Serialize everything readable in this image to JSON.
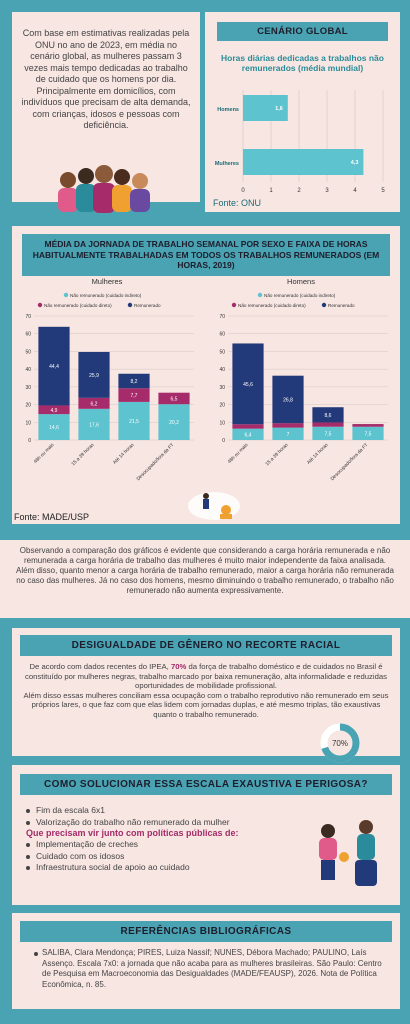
{
  "intro": {
    "text": "Com base em estimativas realizadas pela ONU no ano de 2023, em média no cenário global, as mulheres passam 3 vezes mais tempo dedicadas ao trabalho de cuidado que os homens por dia. Principalmente em domicílios, com indivíduos que precisam de alta demanda, com crianças, idosos e pessoas com deficiência."
  },
  "cenario": {
    "heading": "CENÁRIO GLOBAL",
    "source": "Fonte:  ONU"
  },
  "media": {
    "heading": "MÉDIA DA JORNADA DE TRABALHO SEMANAL POR SEXO E FAIXA DE HORAS HABITUALMENTE TRABALHADAS EM TODOS OS TRABALHOS REMUNERADOS (EM HORAS, 2019)",
    "source": "Fonte:  MADE/USP"
  },
  "colors": {
    "teal": "#4aa3b3",
    "cyan_bar": "#5cc3cf",
    "magenta": "#a62b6a",
    "navy": "#233a7a",
    "pink_bg": "#f7e6e2"
  },
  "chart_data": [
    {
      "type": "bar",
      "orientation": "horizontal",
      "title": "Horas diárias dedicadas a trabalhos não remunerados (média mundial)",
      "categories": [
        "Homens",
        "Mulheres"
      ],
      "values": [
        1.6,
        4.3
      ],
      "xlim": [
        0,
        5
      ],
      "xticks": [
        0,
        1,
        2,
        3,
        4,
        5
      ],
      "value_labels": [
        "1,6",
        "4,3"
      ]
    },
    {
      "type": "bar",
      "stacked": true,
      "title": "Mulheres",
      "categories": [
        "48h ou mais",
        "15 a 39 horas",
        "Até 14 horas",
        "Desocupado/fora da FT"
      ],
      "ylim": [
        0,
        70
      ],
      "yticks": [
        0,
        10,
        20,
        30,
        40,
        50,
        60,
        70
      ],
      "legend": [
        "Não remunerado (cuidado indireto)",
        "Não remunerado (cuidado direto)",
        "Remunerado"
      ],
      "series": [
        {
          "name": "Não remunerado (cuidado indireto)",
          "values": [
            14.6,
            17.6,
            21.5,
            20.2
          ],
          "labels": [
            "14,6",
            "17,6",
            "21,5",
            "20,2"
          ]
        },
        {
          "name": "Não remunerado (cuidado direto)",
          "values": [
            4.9,
            6.2,
            7.7,
            6.5
          ],
          "labels": [
            "4,9",
            "6,2",
            "7,7",
            "6,5"
          ]
        },
        {
          "name": "Remunerado",
          "values": [
            44.4,
            25.9,
            8.2,
            0
          ],
          "labels": [
            "44,4",
            "25,9",
            "8,2",
            ""
          ]
        }
      ]
    },
    {
      "type": "bar",
      "stacked": true,
      "title": "Homens",
      "categories": [
        "48h ou mais",
        "15 a 39 horas",
        "Até 14 horas",
        "Desocupado/fora da FT"
      ],
      "ylim": [
        0,
        70
      ],
      "yticks": [
        0,
        10,
        20,
        30,
        40,
        50,
        60,
        70
      ],
      "legend": [
        "Não remunerado (cuidado indireto)",
        "Não remunerado (cuidado direto)",
        "Remunerado"
      ],
      "series": [
        {
          "name": "Não remunerado (cuidado indireto)",
          "values": [
            6.4,
            7,
            7.5,
            7.5
          ],
          "labels": [
            "6,4",
            "7",
            "7,5",
            "7,5"
          ]
        },
        {
          "name": "Não remunerado (cuidado direto)",
          "values": [
            2.5,
            2.5,
            2.4,
            1.5
          ],
          "labels": [
            "",
            "",
            "",
            ""
          ]
        },
        {
          "name": "Remunerado",
          "values": [
            45.6,
            26.8,
            8.6,
            0
          ],
          "labels": [
            "45,6",
            "26,8",
            "8,6",
            ""
          ]
        }
      ]
    }
  ],
  "observacao": {
    "p1": "Observando a comparação dos gráficos é evidente que considerando a carga horária remunerada e não remunerada a carga horária de trabalho das mulheres é muito maior independente da faixa analisada.",
    "p2": "Além disso, quanto menor a carga horária de trabalho remunerado, maior a carga horária não remunerada no caso das mulheres. Já no caso dos homens, mesmo diminuindo o trabalho remunerado, o trabalho não remunerado não aumenta expressivamente."
  },
  "desigualdade": {
    "heading": "DESIGUALDADE DE GÊNERO NO RECORTE RACIAL",
    "p1_a": "De acordo com dados recentes do IPEA, ",
    "p1_hl": "70%",
    "p1_b": " da força de trabalho doméstico e de cuidados no Brasil é constituído por mulheres negras, trabalho marcado por baixa remuneração, alta informalidade e reduzidas oportunidades de mobilidade profissional.",
    "p2": "Além disso essas mulheres conciliam essa ocupação com o trabalho reprodutivo não remunerado em seus próprios lares, o que faz com que elas lidem com jornadas duplas, e até mesmo triplas, tão exaustivas quanto o trabalho remunerado.",
    "donut_label": "70%",
    "donut_fraction": 0.7
  },
  "solucao": {
    "heading": "COMO SOLUCIONAR ESSA ESCALA EXAUSTIVA E PERIGOSA?",
    "items": [
      "Fim da escala 6x1",
      "Valorização do trabalho não remunerado da mulher"
    ],
    "subheading": "Que precisam vir junto com políticas públicas de:",
    "policies": [
      "Implementação de creches",
      "Cuidado com os idosos",
      "Infraestrutura social de apoio ao cuidado"
    ]
  },
  "referencias": {
    "heading": "REFERÊNCIAS BIBLIOGRÁFICAS",
    "text": "SALIBA, Clara Mendonça; PIRES, Luiza Nassif; NUNES, Débora Machado; PAULINO, Laís Assenço. Escala 7x0: a jornada que não acaba para as mulheres brasileiras. São Paulo: Centro de Pesquisa em Macroeconomia das Desigualdades (MADE/FEAUSP), 2026. Nota de Política Econômica, n. 85."
  }
}
